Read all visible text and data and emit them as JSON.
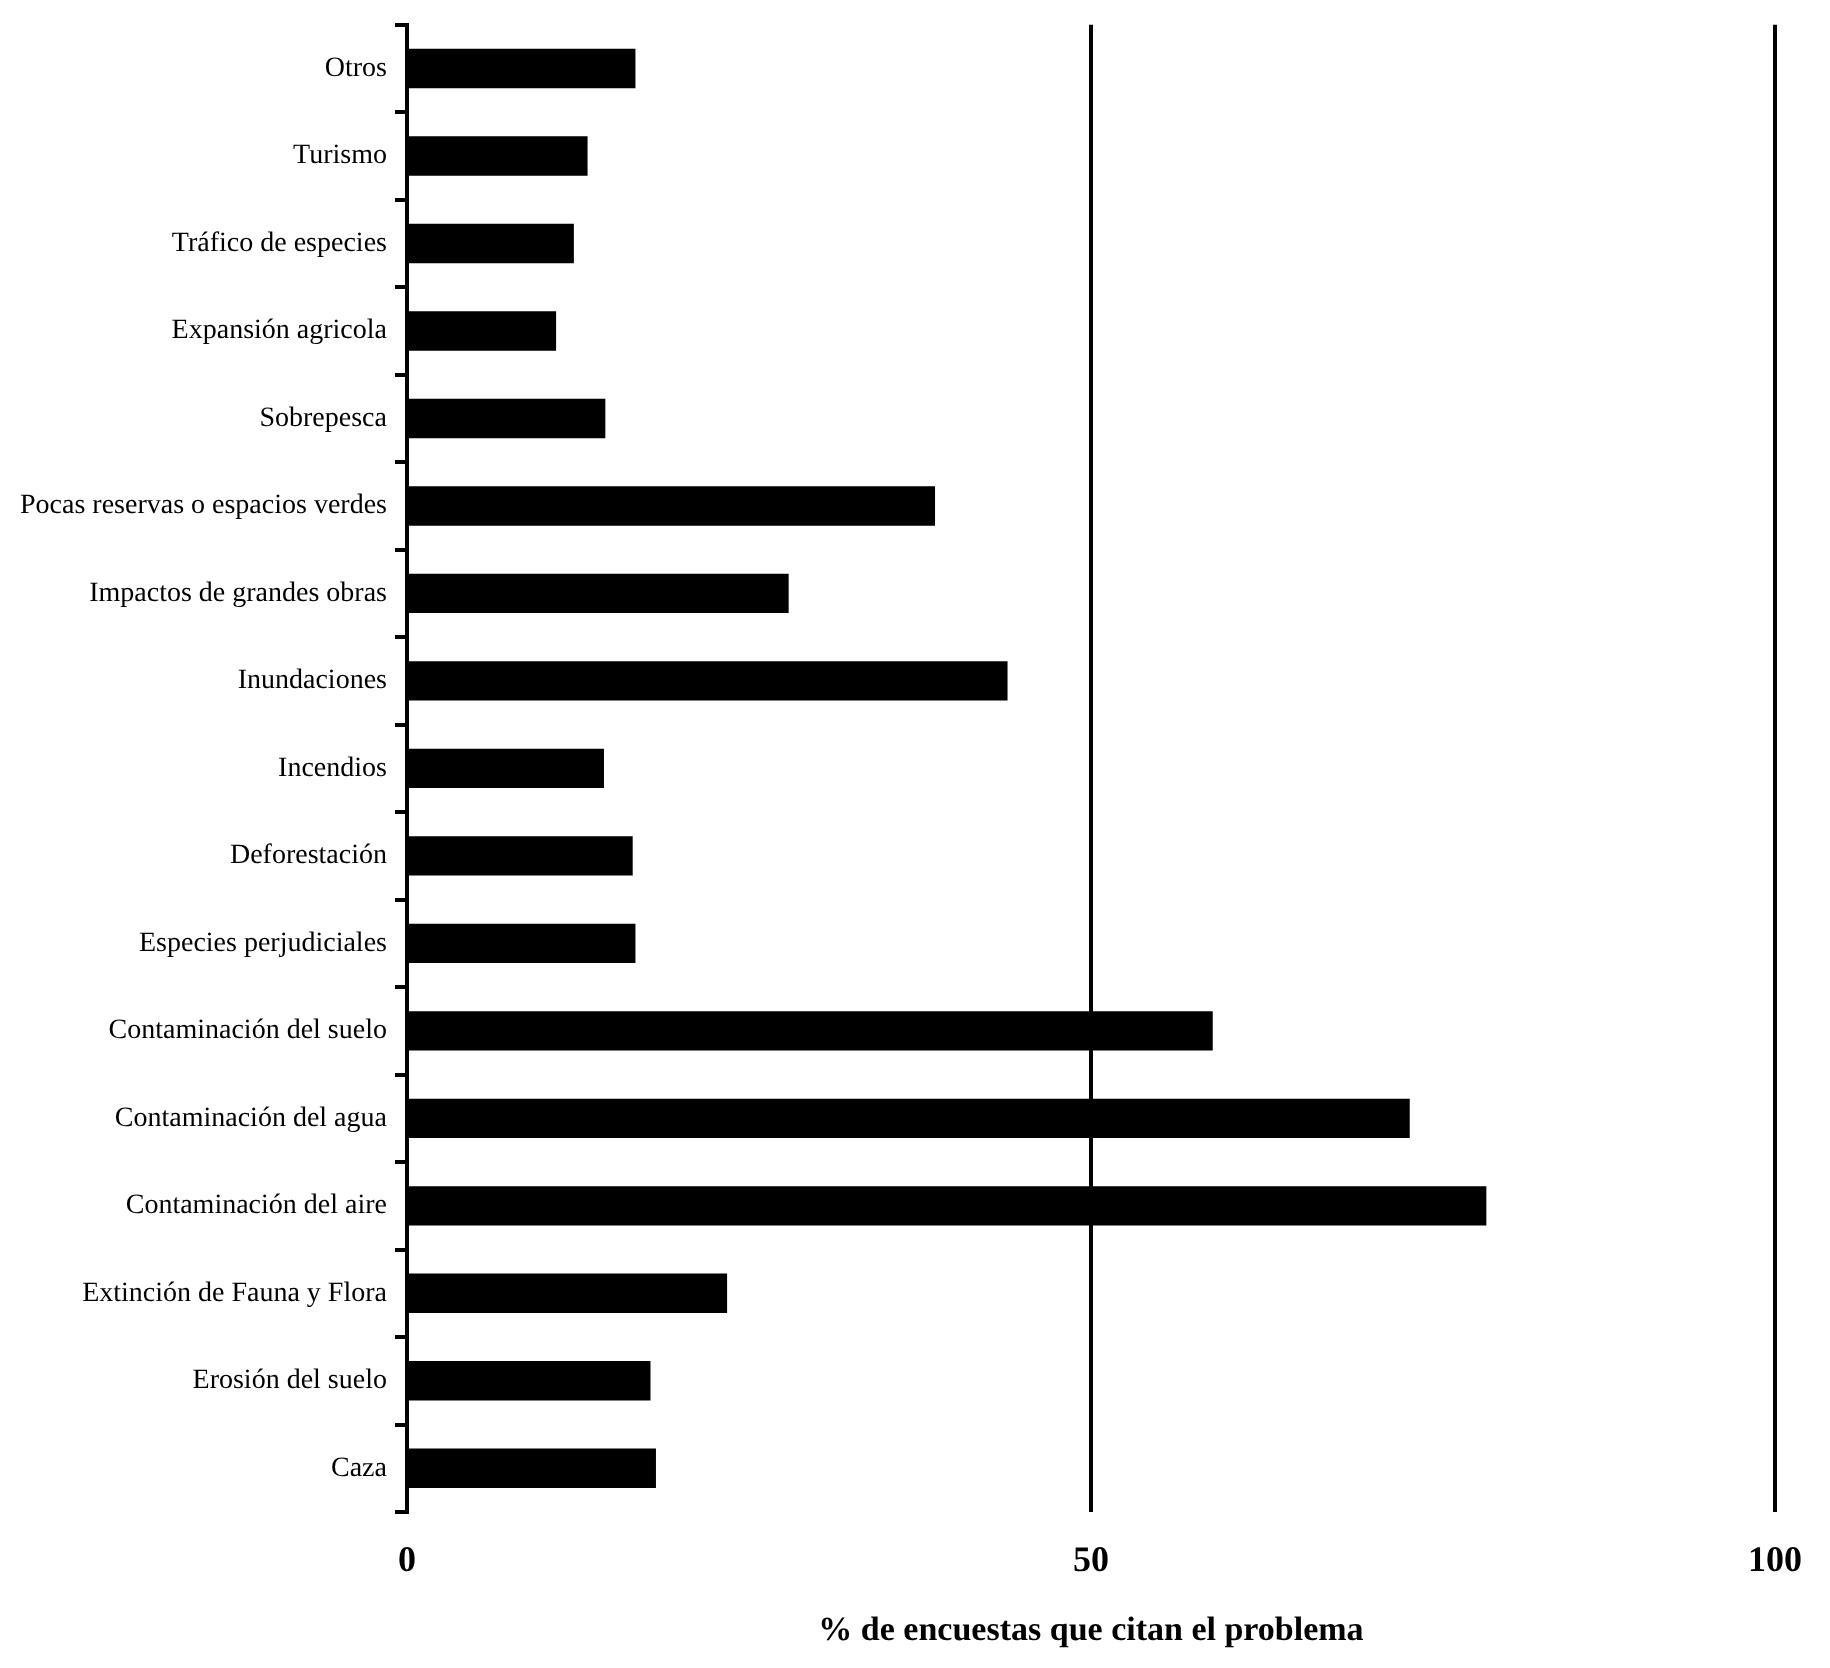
{
  "chart_data": {
    "type": "bar",
    "orientation": "horizontal",
    "xlabel": "% de encuestas que citan el problema",
    "categories": [
      "Otros",
      "Turismo",
      "Tráfico de especies",
      "Expansión agricola",
      "Sobrepesca",
      "Pocas reservas o espacios verdes",
      "Impactos de grandes obras",
      "Inundaciones",
      "Incendios",
      "Deforestación",
      "Especies perjudiciales",
      "Contaminación del suelo",
      "Contaminación del agua",
      "Contaminación del aire",
      "Extinción de Fauna y Flora",
      "Erosión del suelo",
      "Caza"
    ],
    "values": [
      16.7,
      13.2,
      12.2,
      10.9,
      14.5,
      38.6,
      27.9,
      43.9,
      14.4,
      16.5,
      16.7,
      58.9,
      73.3,
      78.9,
      23.4,
      17.8,
      18.2
    ],
    "color": "#000000",
    "xlim": [
      0,
      100
    ],
    "xticks": [
      0,
      50,
      100
    ],
    "grid": "x",
    "legend": false
  }
}
